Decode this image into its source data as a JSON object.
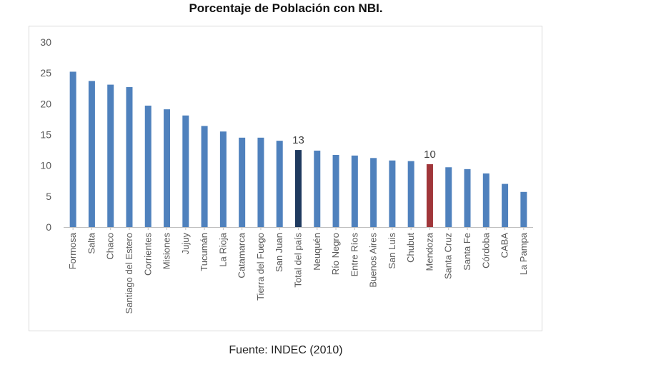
{
  "chart_data": {
    "type": "bar",
    "title": "Porcentaje de Población con NBI.",
    "xlabel": "",
    "ylabel": "",
    "ylim": [
      0,
      30
    ],
    "yticks": [
      0,
      5,
      10,
      15,
      20,
      25,
      30
    ],
    "grid": false,
    "legend": "none",
    "categories": [
      "Formosa",
      "Salta",
      "Chaco",
      "Santiago del Estero",
      "Corrientes",
      "Misiones",
      "Jujuy",
      "Tucumán",
      "La Rioja",
      "Catamarca",
      "Tierra del Fuego",
      "San Juan",
      "Total del país",
      "Neuquén",
      "Río Negro",
      "Entre Ríos",
      "Buenos Aires",
      "San Luis",
      "Chubut",
      "Mendoza",
      "Santa Cruz",
      "Santa Fe",
      "Córdoba",
      "CABA",
      "La Pampa"
    ],
    "values": [
      25.2,
      23.7,
      23.1,
      22.7,
      19.7,
      19.1,
      18.1,
      16.4,
      15.5,
      14.5,
      14.5,
      14.0,
      12.5,
      12.4,
      11.7,
      11.6,
      11.2,
      10.8,
      10.7,
      10.2,
      9.7,
      9.4,
      8.7,
      7.0,
      5.7
    ],
    "colors": {
      "default": "#4f81bd",
      "Total del país": "#1f3a5f",
      "Mendoza": "#a0363a"
    },
    "annotations": [
      {
        "category": "Total del país",
        "text": "13"
      },
      {
        "category": "Mendoza",
        "text": "10"
      }
    ]
  },
  "source": "Fuente: INDEC (2010)"
}
